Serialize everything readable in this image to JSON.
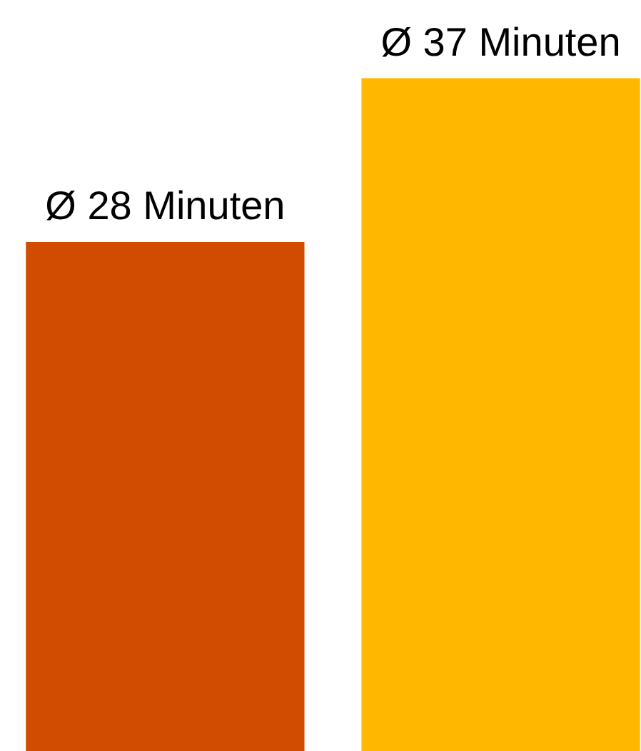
{
  "chart_data": {
    "type": "bar",
    "categories": [
      null,
      null
    ],
    "values": [
      28,
      37
    ],
    "colors": [
      "#d14b00",
      "#ffb700"
    ],
    "value_labels": [
      "Ø 28 Minuten",
      "Ø 37 Minuten"
    ],
    "tick_labels": false
  }
}
